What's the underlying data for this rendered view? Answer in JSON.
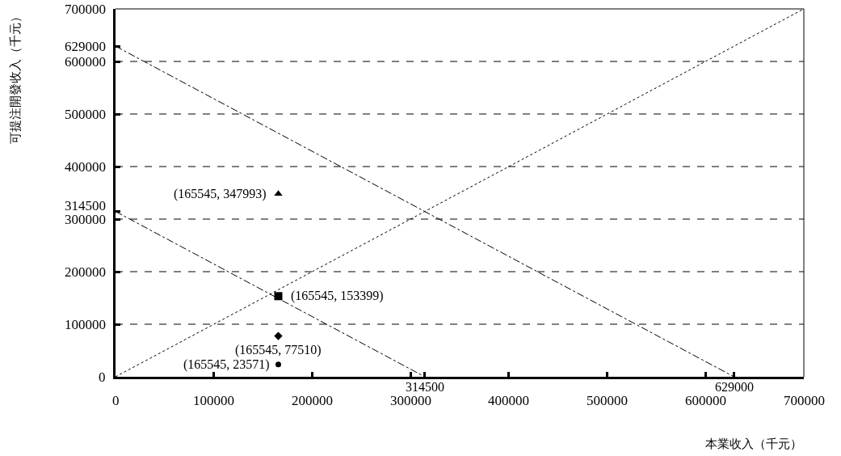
{
  "chart_data": {
    "type": "scatter",
    "xlabel": "本業收入（千元）",
    "ylabel": "可提注開發收入（千元）",
    "xlim": [
      0,
      700000
    ],
    "ylim": [
      0,
      700000
    ],
    "xticks": [
      0,
      100000,
      200000,
      300000,
      {
        "value": 314500,
        "label": null
      },
      400000,
      500000,
      600000,
      {
        "value": 629000,
        "label": null
      },
      700000
    ],
    "yticks": [
      0,
      100000,
      200000,
      300000,
      {
        "value": 314500,
        "label": "314500"
      },
      400000,
      500000,
      600000,
      {
        "value": 629000,
        "label": "629000"
      },
      700000
    ],
    "grid": "y",
    "series": [
      {
        "type": "line",
        "x": [
          0,
          700000
        ],
        "values": [
          0,
          700000
        ],
        "color": "#000000",
        "line_style": "dotted",
        "marker": "none"
      },
      {
        "type": "line",
        "x": [
          0,
          629000
        ],
        "values": [
          629000,
          0
        ],
        "color": "#000000",
        "line_style": "dashdot",
        "marker": "none"
      },
      {
        "type": "line",
        "x": [
          0,
          314500
        ],
        "values": [
          314500,
          0
        ],
        "color": "#000000",
        "line_style": "dashdot",
        "marker": "none"
      },
      {
        "x": [
          165545
        ],
        "values": [
          347993
        ],
        "color": "#000000",
        "marker": "triangle"
      },
      {
        "x": [
          165545
        ],
        "values": [
          153399
        ],
        "color": "#000000",
        "marker": "square"
      },
      {
        "x": [
          165545
        ],
        "values": [
          77510
        ],
        "color": "#000000",
        "marker": "diamond"
      },
      {
        "x": [
          165545
        ],
        "values": [
          23571
        ],
        "color": "#000000",
        "marker": "circle"
      }
    ],
    "annotations": [
      {
        "text": "(165545, 347993)",
        "x": 165545,
        "y": 347993
      },
      {
        "text": "(165545, 153399)",
        "x": 165545,
        "y": 153399
      },
      {
        "text": "(165545, 77510)",
        "x": 165545,
        "y": 77510
      },
      {
        "text": "(165545, 23571)",
        "x": 165545,
        "y": 23571
      },
      {
        "text": "314500",
        "x": 314500,
        "y": 0
      },
      {
        "text": "629000",
        "x": 629000,
        "y": 0
      }
    ]
  }
}
